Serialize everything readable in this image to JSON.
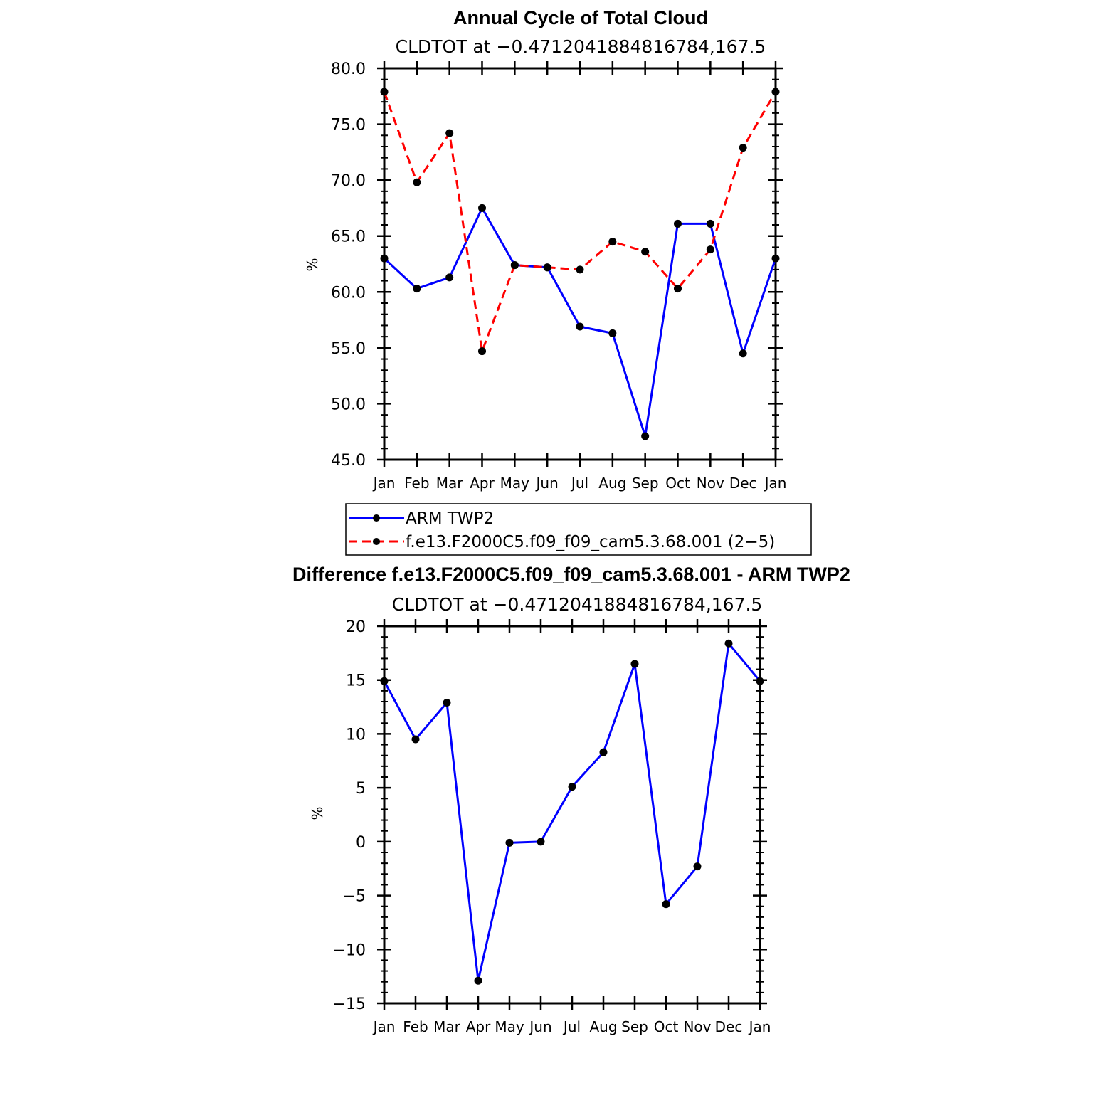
{
  "chart_data": [
    {
      "type": "line",
      "title": "Annual Cycle of Total Cloud",
      "subtitle": "CLDTOT at −0.4712041884816784,167.5",
      "ylabel": "%",
      "categories": [
        "Jan",
        "Feb",
        "Mar",
        "Apr",
        "May",
        "Jun",
        "Jul",
        "Aug",
        "Sep",
        "Oct",
        "Nov",
        "Dec",
        "Jan"
      ],
      "ylim": [
        45,
        80
      ],
      "yticks": [
        "45.0",
        "50.0",
        "55.0",
        "60.0",
        "65.0",
        "70.0",
        "75.0",
        "80.0"
      ],
      "series": [
        {
          "name": "ARM TWP2",
          "color": "#0000ff",
          "dash": "solid",
          "values": [
            63.0,
            60.3,
            61.3,
            67.5,
            62.4,
            62.2,
            56.9,
            56.3,
            47.1,
            66.1,
            66.1,
            54.5,
            63.0
          ]
        },
        {
          "name": "f.e13.F2000C5.f09_f09_cam5.3.68.001 (2−5)",
          "color": "#ff0000",
          "dash": "dashed",
          "values": [
            77.9,
            69.8,
            74.2,
            54.7,
            62.4,
            62.2,
            62.0,
            64.5,
            63.6,
            60.3,
            63.8,
            72.9,
            77.9
          ]
        }
      ],
      "legend_position": "below"
    },
    {
      "type": "line",
      "title": "Difference f.e13.F2000C5.f09_f09_cam5.3.68.001 - ARM TWP2",
      "subtitle": "CLDTOT at −0.4712041884816784,167.5",
      "ylabel": "%",
      "categories": [
        "Jan",
        "Feb",
        "Mar",
        "Apr",
        "May",
        "Jun",
        "Jul",
        "Aug",
        "Sep",
        "Oct",
        "Nov",
        "Dec",
        "Jan"
      ],
      "ylim": [
        -15,
        20
      ],
      "yticks": [
        "−15",
        "−10",
        "−5",
        "0",
        "5",
        "10",
        "15",
        "20"
      ],
      "series": [
        {
          "name": "",
          "color": "#0000ff",
          "dash": "solid",
          "values": [
            14.9,
            9.5,
            12.9,
            -12.9,
            -0.1,
            0.0,
            5.1,
            8.3,
            16.5,
            -5.8,
            -2.3,
            18.4,
            14.9
          ]
        }
      ]
    }
  ]
}
